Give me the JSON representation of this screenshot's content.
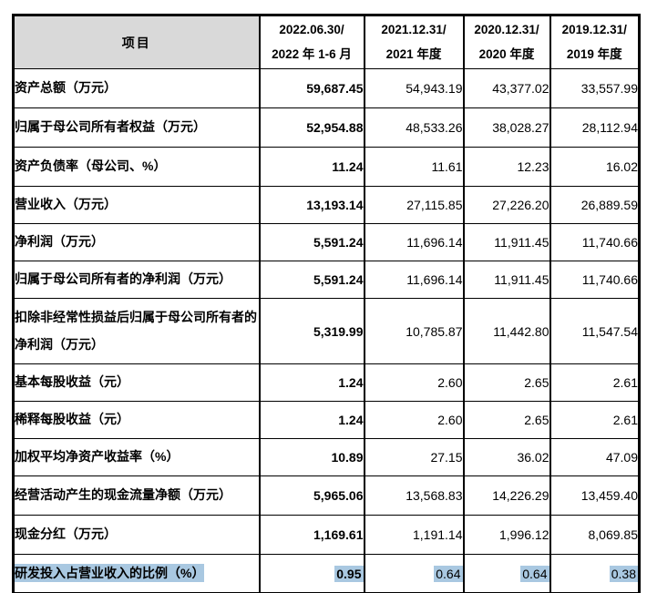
{
  "table": {
    "header": {
      "item": "项目",
      "periods": [
        {
          "line1": "2022.06.30/",
          "line2": "2022 年 1-6 月"
        },
        {
          "line1": "2021.12.31/",
          "line2": "2021 年度"
        },
        {
          "line1": "2020.12.31/",
          "line2": "2020 年度"
        },
        {
          "line1": "2019.12.31/",
          "line2": "2019 年度"
        }
      ]
    },
    "rows": [
      {
        "label": "资产总额（万元）",
        "values": [
          "59,687.45",
          "54,943.19",
          "43,377.02",
          "33,557.99"
        ]
      },
      {
        "label": "归属于母公司所有者权益（万元）",
        "values": [
          "52,954.88",
          "48,533.26",
          "38,028.27",
          "28,112.94"
        ]
      },
      {
        "label": "资产负债率（母公司、%）",
        "values": [
          "11.24",
          "11.61",
          "12.23",
          "16.02"
        ]
      },
      {
        "label": "营业收入（万元）",
        "values": [
          "13,193.14",
          "27,115.85",
          "27,226.20",
          "26,889.59"
        ]
      },
      {
        "label": "净利润（万元）",
        "values": [
          "5,591.24",
          "11,696.14",
          "11,911.45",
          "11,740.66"
        ]
      },
      {
        "label": "归属于母公司所有者的净利润（万元）",
        "values": [
          "5,591.24",
          "11,696.14",
          "11,911.45",
          "11,740.66"
        ]
      },
      {
        "label": "扣除非经常性损益后归属于母公司所有者的净利润（万元）",
        "values": [
          "5,319.99",
          "10,785.87",
          "11,442.80",
          "11,547.54"
        ]
      },
      {
        "label": "基本每股收益（元）",
        "values": [
          "1.24",
          "2.60",
          "2.65",
          "2.61"
        ]
      },
      {
        "label": "稀释每股收益（元）",
        "values": [
          "1.24",
          "2.60",
          "2.65",
          "2.61"
        ]
      },
      {
        "label": "加权平均净资产收益率（%）",
        "values": [
          "10.89",
          "27.15",
          "36.02",
          "47.09"
        ]
      },
      {
        "label": "经营活动产生的现金流量净额（万元）",
        "values": [
          "5,965.06",
          "13,568.83",
          "14,226.29",
          "13,459.40"
        ]
      },
      {
        "label": "现金分红（万元）",
        "values": [
          "1,169.61",
          "1,191.14",
          "1,996.12",
          "8,069.85"
        ]
      },
      {
        "label": "研发投入占营业收入的比例（%）",
        "values": [
          "0.95",
          "0.64",
          "0.64",
          "0.38"
        ],
        "highlighted": true
      }
    ],
    "colors": {
      "header_item_bg": "#d9d9d9",
      "highlight_bg": "#a9c8e1",
      "border": "#000000",
      "text": "#000000"
    }
  }
}
